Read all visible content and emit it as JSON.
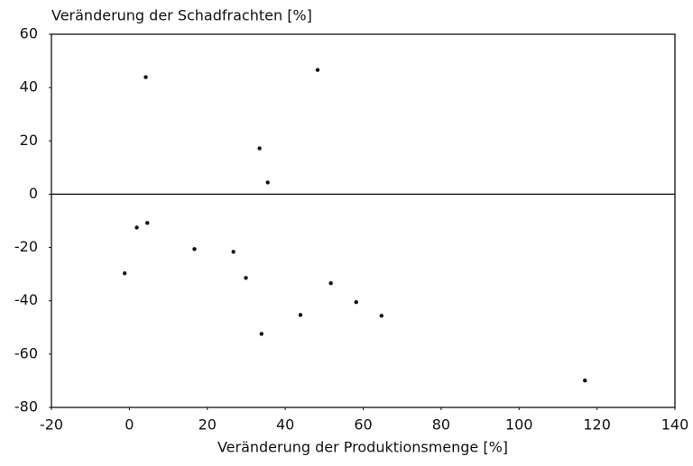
{
  "chart_data": {
    "type": "scatter",
    "title": "Veränderung der Schadfrachten [%]",
    "x_label": "Veränderung der Produktionsmenge [%]",
    "x": [
      4.2,
      48.3,
      33.4,
      35.5,
      1.9,
      4.6,
      -1.2,
      16.7,
      26.7,
      29.9,
      51.7,
      58.2,
      43.9,
      64.7,
      33.9,
      116.9
    ],
    "values": [
      43.9,
      46.6,
      17.2,
      4.4,
      -12.5,
      -10.8,
      -29.7,
      -20.6,
      -21.6,
      -31.4,
      -33.4,
      -40.5,
      -45.3,
      -45.6,
      -52.4,
      -69.9
    ],
    "color": "#111111",
    "xlim": [
      -20,
      140
    ],
    "xticks": [
      -20,
      0,
      20,
      40,
      60,
      80,
      100,
      120,
      140
    ],
    "ylim": [
      -80,
      60
    ],
    "yticks": [
      -80,
      -60,
      -40,
      -20,
      0,
      20,
      40,
      60
    ],
    "reference_line": 0,
    "grid": false
  }
}
